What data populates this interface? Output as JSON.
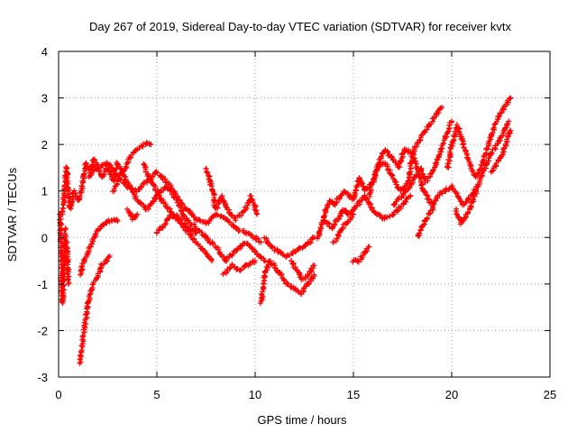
{
  "chart_data": {
    "type": "scatter",
    "title": "Day 267 of 2019, Sidereal Day-to-day VTEC variation (SDTVAR) for receiver kvtx",
    "xlabel": "GPS time / hours",
    "ylabel": "SDTVAR / TECUs",
    "xlim": [
      0,
      25
    ],
    "ylim": [
      -3,
      4
    ],
    "xticks": [
      0,
      5,
      10,
      15,
      20,
      25
    ],
    "yticks": [
      -3,
      -2,
      -1,
      0,
      1,
      2,
      3,
      4
    ],
    "grid": true,
    "marker": "+",
    "series_color": "#ff0000",
    "tracks": [
      [
        [
          0.2,
          0.5
        ],
        [
          0.3,
          1.0
        ],
        [
          0.4,
          1.5
        ],
        [
          0.5,
          1.0
        ],
        [
          0.6,
          0.6
        ],
        [
          0.8,
          1.0
        ],
        [
          1.0,
          0.8
        ],
        [
          1.2,
          1.1
        ],
        [
          1.4,
          1.6
        ],
        [
          1.6,
          1.4
        ],
        [
          1.8,
          1.7
        ],
        [
          2.0,
          1.5
        ],
        [
          2.2,
          1.3
        ],
        [
          2.5,
          1.5
        ],
        [
          2.8,
          1.2
        ],
        [
          3.0,
          1.6
        ],
        [
          3.3,
          1.4
        ],
        [
          3.6,
          1.7
        ],
        [
          4.0,
          1.9
        ],
        [
          4.5,
          2.05
        ],
        [
          4.7,
          2.0
        ]
      ],
      [
        [
          0.1,
          0.5
        ],
        [
          0.15,
          -0.5
        ],
        [
          0.2,
          -1.4
        ],
        [
          0.3,
          -0.6
        ],
        [
          0.35,
          0.2
        ]
      ],
      [
        [
          0.4,
          -0.1
        ],
        [
          0.45,
          -0.5
        ],
        [
          0.5,
          -1.0
        ]
      ],
      [
        [
          1.1,
          -2.7
        ],
        [
          1.2,
          -2.3
        ],
        [
          1.3,
          -2.0
        ],
        [
          1.4,
          -1.7
        ],
        [
          1.5,
          -1.4
        ],
        [
          1.6,
          -1.2
        ],
        [
          1.8,
          -1.0
        ],
        [
          2.0,
          -0.8
        ],
        [
          2.2,
          -0.6
        ],
        [
          2.4,
          -0.5
        ],
        [
          2.6,
          -0.4
        ]
      ],
      [
        [
          1.1,
          -0.8
        ],
        [
          1.3,
          -0.5
        ],
        [
          1.5,
          -0.3
        ],
        [
          1.7,
          -0.1
        ],
        [
          1.9,
          0.1
        ],
        [
          2.1,
          0.2
        ],
        [
          2.4,
          0.3
        ],
        [
          2.8,
          0.4
        ],
        [
          3.0,
          0.35
        ]
      ],
      [
        [
          1.5,
          1.3
        ],
        [
          2.0,
          1.5
        ],
        [
          2.5,
          1.6
        ],
        [
          3.0,
          1.3
        ],
        [
          3.5,
          1.1
        ],
        [
          4.0,
          1.0
        ],
        [
          4.5,
          1.2
        ],
        [
          5.0,
          1.4
        ],
        [
          5.5,
          1.2
        ],
        [
          6.0,
          0.9
        ],
        [
          6.5,
          0.6
        ],
        [
          7.0,
          0.4
        ],
        [
          7.5,
          0.3
        ],
        [
          8.0,
          0.5
        ],
        [
          8.5,
          0.4
        ],
        [
          9.0,
          0.2
        ],
        [
          9.5,
          0.1
        ],
        [
          10.0,
          0.0
        ],
        [
          10.3,
          -0.1
        ]
      ],
      [
        [
          2.8,
          1.0
        ],
        [
          3.2,
          1.4
        ],
        [
          3.6,
          1.1
        ],
        [
          4.0,
          0.8
        ],
        [
          4.5,
          0.6
        ],
        [
          5.0,
          0.9
        ],
        [
          5.5,
          1.1
        ],
        [
          6.0,
          0.8
        ],
        [
          6.5,
          0.4
        ],
        [
          7.0,
          0.2
        ],
        [
          7.5,
          0.0
        ],
        [
          8.0,
          -0.2
        ],
        [
          8.5,
          -0.5
        ],
        [
          9.0,
          -0.3
        ],
        [
          9.5,
          -0.1
        ],
        [
          10.0,
          -0.3
        ],
        [
          10.5,
          -0.5
        ]
      ],
      [
        [
          4.3,
          1.6
        ],
        [
          4.6,
          1.3
        ],
        [
          5.0,
          1.0
        ],
        [
          5.4,
          0.7
        ],
        [
          5.8,
          0.5
        ],
        [
          6.2,
          0.3
        ],
        [
          6.8,
          0.0
        ],
        [
          7.4,
          -0.3
        ],
        [
          7.8,
          -0.5
        ]
      ],
      [
        [
          5.0,
          0.1
        ],
        [
          5.4,
          0.3
        ],
        [
          5.8,
          0.5
        ],
        [
          6.2,
          0.4
        ],
        [
          6.6,
          0.2
        ],
        [
          7.0,
          0.1
        ]
      ],
      [
        [
          3.5,
          0.6
        ],
        [
          3.8,
          0.4
        ],
        [
          4.0,
          0.5
        ]
      ],
      [
        [
          7.5,
          1.5
        ],
        [
          7.8,
          1.1
        ],
        [
          8.0,
          0.6
        ],
        [
          8.3,
          0.9
        ],
        [
          8.6,
          0.6
        ],
        [
          9.0,
          0.4
        ],
        [
          9.5,
          0.6
        ],
        [
          9.8,
          0.9
        ],
        [
          10.1,
          0.5
        ]
      ],
      [
        [
          8.4,
          -0.8
        ],
        [
          8.8,
          -0.6
        ],
        [
          9.2,
          -0.7
        ],
        [
          9.6,
          -0.6
        ],
        [
          10.0,
          -0.5
        ]
      ],
      [
        [
          10.3,
          -1.4
        ],
        [
          10.5,
          -0.8
        ],
        [
          10.7,
          -0.5
        ],
        [
          11.0,
          -0.6
        ],
        [
          11.3,
          -0.8
        ],
        [
          11.6,
          -1.0
        ],
        [
          12.0,
          -1.1
        ],
        [
          12.3,
          -1.2
        ],
        [
          12.7,
          -1.0
        ],
        [
          13.0,
          -0.8
        ]
      ],
      [
        [
          10.5,
          0.0
        ],
        [
          10.8,
          -0.2
        ],
        [
          11.2,
          -0.3
        ],
        [
          11.6,
          -0.4
        ],
        [
          12.0,
          -0.3
        ],
        [
          12.4,
          -0.2
        ],
        [
          12.8,
          -0.1
        ],
        [
          13.0,
          0.0
        ]
      ],
      [
        [
          11.8,
          -0.5
        ],
        [
          12.1,
          -0.7
        ],
        [
          12.4,
          -0.9
        ],
        [
          12.7,
          -0.8
        ],
        [
          13.0,
          -0.6
        ]
      ],
      [
        [
          13.2,
          0.0
        ],
        [
          13.4,
          0.3
        ],
        [
          13.6,
          0.6
        ],
        [
          13.8,
          0.8
        ],
        [
          14.0,
          0.7
        ],
        [
          14.3,
          0.9
        ],
        [
          14.6,
          1.0
        ],
        [
          15.0,
          0.8
        ],
        [
          15.3,
          1.3
        ],
        [
          15.6,
          1.0
        ],
        [
          16.0,
          1.2
        ],
        [
          16.3,
          1.6
        ],
        [
          16.6,
          1.9
        ],
        [
          17.0,
          1.7
        ],
        [
          17.3,
          1.5
        ],
        [
          17.6,
          1.9
        ],
        [
          18.0,
          1.8
        ],
        [
          18.3,
          1.4
        ],
        [
          18.6,
          1.0
        ],
        [
          19.0,
          0.7
        ]
      ],
      [
        [
          13.5,
          0.4
        ],
        [
          13.9,
          0.2
        ],
        [
          14.2,
          0.4
        ],
        [
          14.5,
          0.6
        ],
        [
          14.8,
          0.5
        ],
        [
          15.2,
          0.7
        ],
        [
          15.6,
          0.9
        ],
        [
          16.0,
          0.6
        ],
        [
          16.5,
          0.4
        ],
        [
          17.0,
          0.5
        ],
        [
          17.5,
          0.7
        ],
        [
          17.9,
          0.9
        ]
      ],
      [
        [
          14.0,
          -0.1
        ],
        [
          14.3,
          0.1
        ],
        [
          14.6,
          0.3
        ],
        [
          15.0,
          0.5
        ]
      ],
      [
        [
          15.0,
          -0.5
        ],
        [
          15.3,
          -0.5
        ],
        [
          15.6,
          -0.3
        ],
        [
          15.8,
          -0.2
        ]
      ],
      [
        [
          15.8,
          0.9
        ],
        [
          16.2,
          1.5
        ],
        [
          16.6,
          1.6
        ],
        [
          17.0,
          1.3
        ],
        [
          17.4,
          1.0
        ],
        [
          17.8,
          1.2
        ],
        [
          18.0,
          1.8
        ],
        [
          18.5,
          2.2
        ],
        [
          19.0,
          2.5
        ],
        [
          19.3,
          2.7
        ],
        [
          19.5,
          2.8
        ]
      ],
      [
        [
          17.0,
          0.7
        ],
        [
          17.5,
          0.9
        ],
        [
          18.0,
          1.2
        ],
        [
          18.4,
          1.5
        ],
        [
          18.7,
          1.2
        ],
        [
          19.0,
          1.4
        ],
        [
          19.4,
          1.8
        ],
        [
          19.8,
          2.3
        ],
        [
          20.0,
          2.5
        ]
      ],
      [
        [
          18.3,
          0.0
        ],
        [
          18.6,
          0.3
        ],
        [
          19.0,
          0.6
        ],
        [
          19.3,
          0.9
        ],
        [
          19.6,
          1.0
        ],
        [
          20.0,
          1.1
        ],
        [
          20.3,
          0.9
        ],
        [
          20.6,
          0.7
        ],
        [
          21.0,
          0.9
        ],
        [
          21.3,
          1.1
        ]
      ],
      [
        [
          19.8,
          1.5
        ],
        [
          20.0,
          2.0
        ],
        [
          20.3,
          2.4
        ],
        [
          20.6,
          2.0
        ],
        [
          20.9,
          1.6
        ],
        [
          21.2,
          1.3
        ],
        [
          21.5,
          1.5
        ],
        [
          21.8,
          1.9
        ],
        [
          22.1,
          2.3
        ],
        [
          22.4,
          2.6
        ],
        [
          22.8,
          2.9
        ],
        [
          23.0,
          3.0
        ]
      ],
      [
        [
          20.2,
          0.6
        ],
        [
          20.5,
          0.3
        ],
        [
          20.8,
          0.5
        ],
        [
          21.1,
          0.8
        ],
        [
          21.4,
          1.2
        ],
        [
          21.7,
          1.5
        ],
        [
          22.0,
          1.8
        ],
        [
          22.3,
          2.0
        ],
        [
          22.6,
          2.2
        ],
        [
          22.9,
          2.5
        ]
      ],
      [
        [
          22.0,
          1.4
        ],
        [
          22.3,
          1.6
        ],
        [
          22.6,
          1.8
        ],
        [
          22.9,
          2.2
        ],
        [
          23.0,
          2.3
        ]
      ]
    ]
  }
}
